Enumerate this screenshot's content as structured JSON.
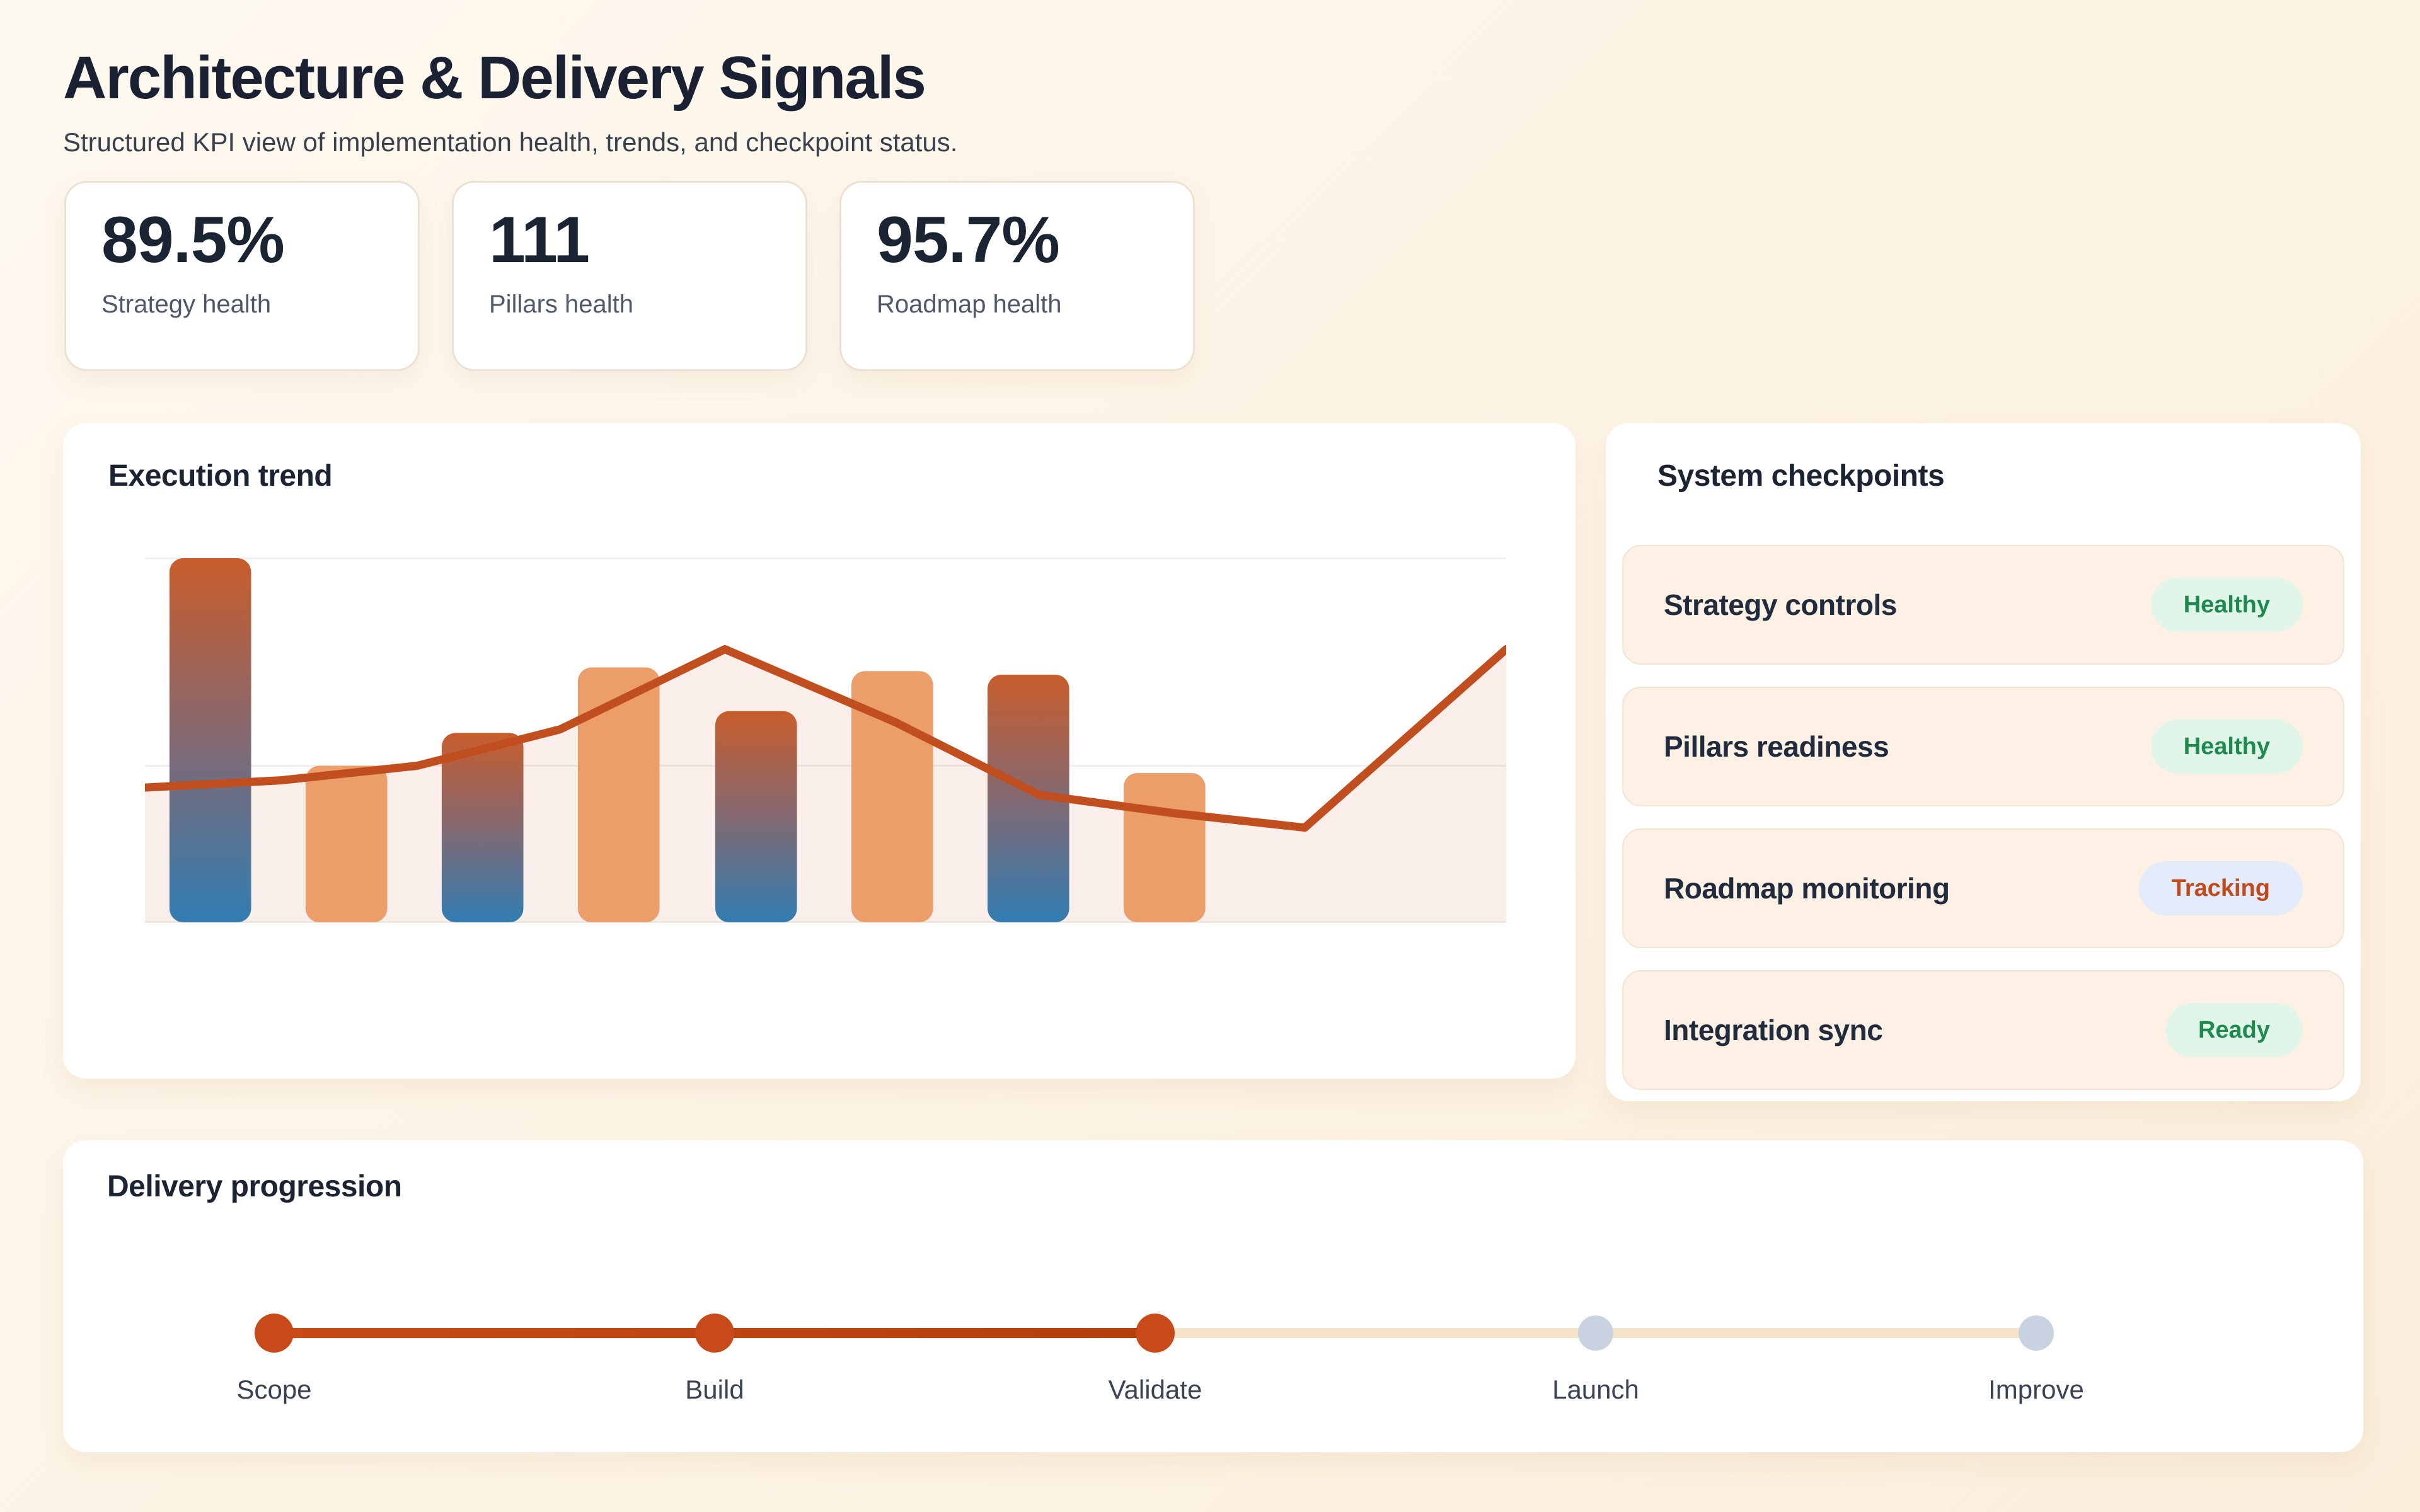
{
  "page": {
    "title": "Architecture & Delivery Signals",
    "subtitle": "Structured KPI view of implementation health, trends, and checkpoint status."
  },
  "kpis": [
    {
      "value": "89.5%",
      "label": "Strategy health"
    },
    {
      "value": "111",
      "label": "Pillars health"
    },
    {
      "value": "95.7%",
      "label": "Roadmap health"
    }
  ],
  "execution_trend": {
    "title": "Execution trend"
  },
  "checkpoints": {
    "title": "System checkpoints",
    "items": [
      {
        "label": "Strategy controls",
        "status": "Healthy",
        "status_key": "healthy"
      },
      {
        "label": "Pillars readiness",
        "status": "Healthy",
        "status_key": "healthy"
      },
      {
        "label": "Roadmap monitoring",
        "status": "Tracking",
        "status_key": "tracking"
      },
      {
        "label": "Integration sync",
        "status": "Ready",
        "status_key": "ready"
      }
    ]
  },
  "progression": {
    "title": "Delivery progression",
    "steps": [
      {
        "label": "Scope",
        "state": "done"
      },
      {
        "label": "Build",
        "state": "done"
      },
      {
        "label": "Validate",
        "state": "done"
      },
      {
        "label": "Launch",
        "state": "upcoming"
      },
      {
        "label": "Improve",
        "state": "upcoming"
      }
    ]
  },
  "theme": {
    "heading_color": "#1a2133",
    "accent": "#c2410c",
    "step_done_color": "#c8491a",
    "step_upcoming_color": "#c9d2e0",
    "inactive_track_color": "#f5e3c9",
    "status_styles": {
      "healthy": {
        "bg": "#e1f6e9",
        "fg": "#1d8a4e"
      },
      "tracking": {
        "bg": "#e4ebfb",
        "fg": "#c2491a"
      },
      "ready": {
        "bg": "#e1f6e9",
        "fg": "#1d8a4e"
      }
    }
  },
  "chart_data": {
    "type": "bar+line",
    "title": "Execution trend",
    "xlabel": "",
    "ylabel": "",
    "axis_tick_labels": "none",
    "legend": "none",
    "ylim": [
      0,
      100
    ],
    "gridline_values": [
      100,
      43
    ],
    "series": [
      {
        "name": "execution bars",
        "type": "bar",
        "values": [
          100,
          43,
          52,
          70,
          58,
          69,
          68,
          41
        ],
        "variants": [
          "gradient",
          "solid",
          "gradient",
          "solid",
          "gradient",
          "solid",
          "gradient",
          "solid"
        ],
        "centers_pct": [
          4.8,
          14.8,
          24.8,
          34.8,
          44.9,
          54.9,
          64.9,
          74.9
        ],
        "width_pct": 6,
        "solid_color": "#ec9e6a",
        "gradient_stops": [
          "#c85d2c",
          "#86686f",
          "#327db2"
        ]
      },
      {
        "name": "trend line",
        "type": "line",
        "x_pct": [
          0,
          10,
          20,
          30.5,
          42.6,
          55.1,
          65.7,
          75.5,
          85.2,
          100
        ],
        "values": [
          37,
          39,
          43,
          53,
          75,
          55,
          35,
          30,
          26,
          75
        ],
        "color": "#c04e1e",
        "area_color": "rgba(199,93,52,0.10)",
        "stroke_width": 13
      }
    ]
  }
}
